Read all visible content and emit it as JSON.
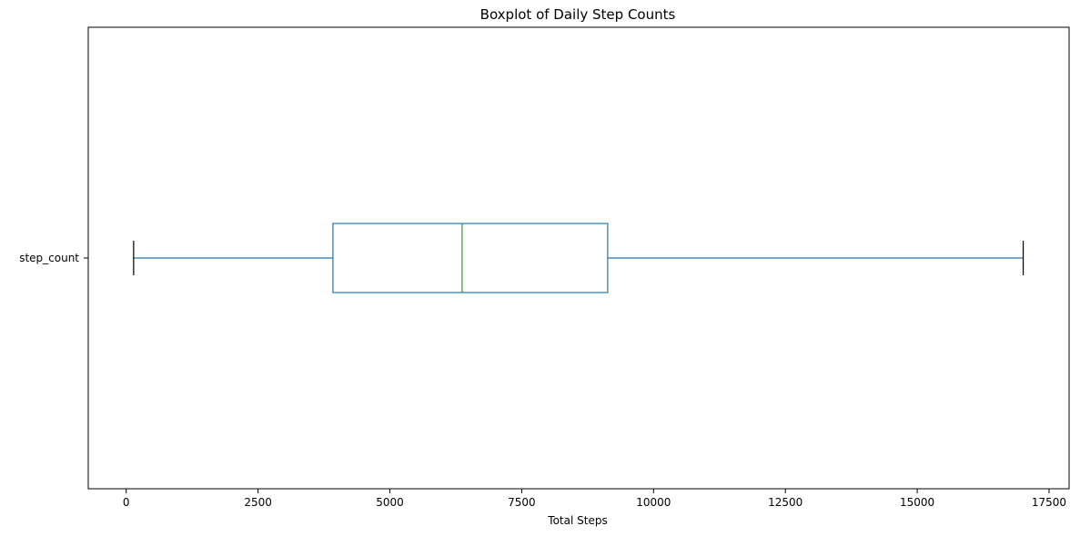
{
  "chart_data": {
    "type": "boxplot",
    "orientation": "horizontal",
    "title": "Boxplot of Daily Step Counts",
    "xlabel": "Total Steps",
    "ylabel": "",
    "xlim": [
      -720,
      17880
    ],
    "xticks": [
      0,
      2500,
      5000,
      7500,
      10000,
      12500,
      15000,
      17500
    ],
    "xtick_labels": [
      "0",
      "2500",
      "5000",
      "7500",
      "10000",
      "12500",
      "15000",
      "17500"
    ],
    "categories": [
      "step_count"
    ],
    "series": [
      {
        "label": "step_count",
        "whisker_low": 140,
        "q1": 3920,
        "median": 6370,
        "q3": 9130,
        "whisker_high": 17010
      }
    ],
    "grid": false,
    "colors": {
      "box": "#1f77b4",
      "median": "#2ca02c",
      "caps": "#000000"
    }
  }
}
